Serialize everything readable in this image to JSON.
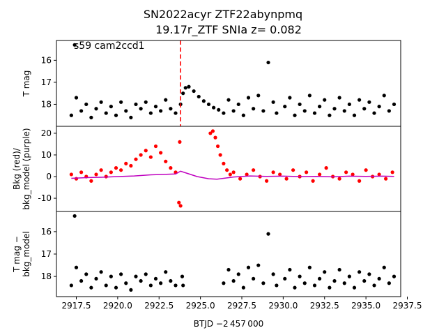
{
  "chart_data": [
    {
      "type": "scatter",
      "title": "SN2022acyr  ZTF22abynpmq",
      "subtitle": "19.17r_ZTF SNIa z= 0.082",
      "annotation": "s59 cam2ccd1",
      "ylabel": [
        "T mag"
      ],
      "xlim": [
        2916.3,
        2937.1
      ],
      "ylim": [
        19.0,
        15.1
      ],
      "yticks": [
        16,
        17,
        18
      ],
      "vline": 2923.8,
      "vline_color": "#ff0000",
      "series": [
        {
          "color": "#000000",
          "mark": "dot",
          "x": [
            2917.4,
            2917.2,
            2917.5,
            2917.8,
            2918.1,
            2918.4,
            2918.7,
            2919.0,
            2919.3,
            2919.6,
            2919.9,
            2920.2,
            2920.5,
            2920.8,
            2921.1,
            2921.4,
            2921.7,
            2922.0,
            2922.3,
            2922.6,
            2922.9,
            2923.2,
            2923.5,
            2923.8,
            2923.95,
            2924.1,
            2924.3,
            2924.6,
            2924.9,
            2925.2,
            2925.5,
            2925.8,
            2926.1,
            2926.4,
            2926.7,
            2927.0,
            2927.3,
            2927.6,
            2927.9,
            2928.2,
            2928.5,
            2928.8,
            2929.1,
            2929.4,
            2929.6,
            2930.1,
            2930.4,
            2930.7,
            2931.0,
            2931.3,
            2931.6,
            2931.9,
            2932.2,
            2932.5,
            2932.8,
            2933.1,
            2933.4,
            2933.7,
            2934.0,
            2934.3,
            2934.6,
            2934.9,
            2935.2,
            2935.5,
            2935.8,
            2936.1,
            2936.4,
            2936.7
          ],
          "values": [
            15.3,
            18.5,
            17.7,
            18.3,
            18.0,
            18.6,
            18.2,
            17.9,
            18.4,
            18.1,
            18.5,
            17.9,
            18.3,
            18.6,
            18.0,
            18.2,
            17.9,
            18.4,
            18.1,
            18.3,
            17.8,
            18.2,
            18.4,
            18.0,
            17.5,
            17.25,
            17.2,
            17.4,
            17.65,
            17.85,
            18.0,
            18.15,
            18.25,
            18.4,
            17.8,
            18.3,
            18.0,
            18.5,
            17.7,
            18.2,
            17.6,
            18.3,
            16.1,
            17.9,
            18.4,
            18.1,
            17.7,
            18.5,
            18.0,
            18.3,
            17.6,
            18.4,
            18.1,
            17.8,
            18.5,
            18.2,
            17.7,
            18.3,
            18.0,
            18.5,
            17.8,
            18.2,
            17.9,
            18.4,
            18.1,
            17.6,
            18.3,
            18.0
          ]
        }
      ]
    },
    {
      "type": "scatter",
      "ylabel": [
        "Bkg (red)/",
        "bkg_model (purple)"
      ],
      "xlim": [
        2916.3,
        2937.1
      ],
      "ylim": [
        -16.1,
        23.2
      ],
      "yticks": [
        -10,
        0,
        10,
        20
      ],
      "series": [
        {
          "color": "#ff0000",
          "mark": "dot",
          "x": [
            2917.2,
            2917.5,
            2917.8,
            2918.1,
            2918.4,
            2918.7,
            2919.0,
            2919.3,
            2919.6,
            2919.9,
            2920.2,
            2920.5,
            2920.8,
            2921.1,
            2921.4,
            2921.7,
            2922.0,
            2922.3,
            2922.6,
            2922.9,
            2923.2,
            2923.5,
            2923.7,
            2923.75,
            2923.8,
            2925.6,
            2925.75,
            2925.9,
            2926.05,
            2926.2,
            2926.4,
            2926.6,
            2926.8,
            2927.0,
            2927.4,
            2927.8,
            2928.2,
            2928.6,
            2929.0,
            2929.4,
            2929.8,
            2930.2,
            2930.6,
            2931.0,
            2931.4,
            2931.8,
            2932.2,
            2932.6,
            2933.0,
            2933.4,
            2933.8,
            2934.2,
            2934.6,
            2935.0,
            2935.4,
            2935.8,
            2936.2,
            2936.6
          ],
          "values": [
            1,
            -1,
            2,
            0,
            -2,
            1,
            3,
            0,
            2,
            4,
            3,
            6,
            5,
            8,
            10,
            12,
            9,
            14,
            11,
            7,
            4,
            2,
            -12,
            16,
            -13.5,
            20,
            21,
            18,
            14,
            10,
            6,
            3,
            1,
            2,
            -1,
            1,
            3,
            0,
            -2,
            2,
            1,
            -1,
            3,
            0,
            2,
            -2,
            1,
            4,
            0,
            -1,
            2,
            1,
            -2,
            3,
            0,
            1,
            -1,
            2
          ]
        },
        {
          "color": "#bf00bf",
          "mark": "line",
          "x": [
            2917.2,
            2918.0,
            2919.0,
            2920.0,
            2921.0,
            2922.0,
            2922.8,
            2923.5,
            2923.8,
            2924.2,
            2924.8,
            2925.5,
            2926.0,
            2927.0,
            2928.0,
            2929.0,
            2930.0,
            2931.0,
            2932.0,
            2933.0,
            2934.0,
            2935.0,
            2936.0,
            2936.7
          ],
          "values": [
            -0.8,
            -0.5,
            -0.3,
            0,
            0.3,
            0.8,
            1,
            1.2,
            2.5,
            1.5,
            0,
            -1,
            -1.2,
            -0.2,
            0.3,
            0.1,
            0.2,
            0,
            0.1,
            -0.1,
            0.2,
            0.1,
            0.2,
            0.1
          ]
        }
      ]
    },
    {
      "type": "scatter",
      "ylabel": [
        "T mag −",
        "bkg_model"
      ],
      "xlabel": "BTJD −2 457 000",
      "xlim": [
        2916.3,
        2937.1
      ],
      "ylim": [
        18.9,
        15.1
      ],
      "yticks": [
        16,
        17,
        18
      ],
      "xticks": [
        2917.5,
        {
          "value": 2920,
          "label": "2920.0"
        },
        2922.5,
        {
          "value": 2925,
          "label": "2925.0"
        },
        2927.5,
        {
          "value": 2930,
          "label": "2930.0"
        },
        2932.5,
        {
          "value": 2935,
          "label": "2935.0"
        },
        2937.5
      ],
      "series": [
        {
          "color": "#000000",
          "mark": "dot",
          "x": [
            2917.4,
            2917.2,
            2917.5,
            2917.8,
            2918.1,
            2918.4,
            2918.7,
            2919.0,
            2919.3,
            2919.6,
            2919.9,
            2920.2,
            2920.5,
            2920.8,
            2921.1,
            2921.4,
            2921.7,
            2922.0,
            2922.3,
            2922.6,
            2922.9,
            2923.2,
            2923.5,
            2923.9,
            2923.95,
            2926.4,
            2926.7,
            2927.0,
            2927.3,
            2927.6,
            2927.9,
            2928.2,
            2928.5,
            2928.8,
            2929.1,
            2929.4,
            2929.6,
            2930.1,
            2930.4,
            2930.7,
            2931.0,
            2931.3,
            2931.6,
            2931.9,
            2932.2,
            2932.5,
            2932.8,
            2933.1,
            2933.4,
            2933.7,
            2934.0,
            2934.3,
            2934.6,
            2934.9,
            2935.2,
            2935.5,
            2935.8,
            2936.1,
            2936.4,
            2936.7
          ],
          "values": [
            15.3,
            18.4,
            17.6,
            18.2,
            17.9,
            18.5,
            18.1,
            17.8,
            18.4,
            18.0,
            18.5,
            17.9,
            18.3,
            18.6,
            18.0,
            18.2,
            17.9,
            18.4,
            18.1,
            18.3,
            17.8,
            18.2,
            18.4,
            18.0,
            18.4,
            18.3,
            17.7,
            18.2,
            17.9,
            18.5,
            17.6,
            18.1,
            17.5,
            18.3,
            16.1,
            17.9,
            18.4,
            18.1,
            17.7,
            18.5,
            18.0,
            18.3,
            17.6,
            18.4,
            18.1,
            17.8,
            18.5,
            18.2,
            17.7,
            18.3,
            18.0,
            18.5,
            17.8,
            18.2,
            17.9,
            18.4,
            18.1,
            17.6,
            18.3,
            18.0
          ]
        }
      ]
    }
  ]
}
